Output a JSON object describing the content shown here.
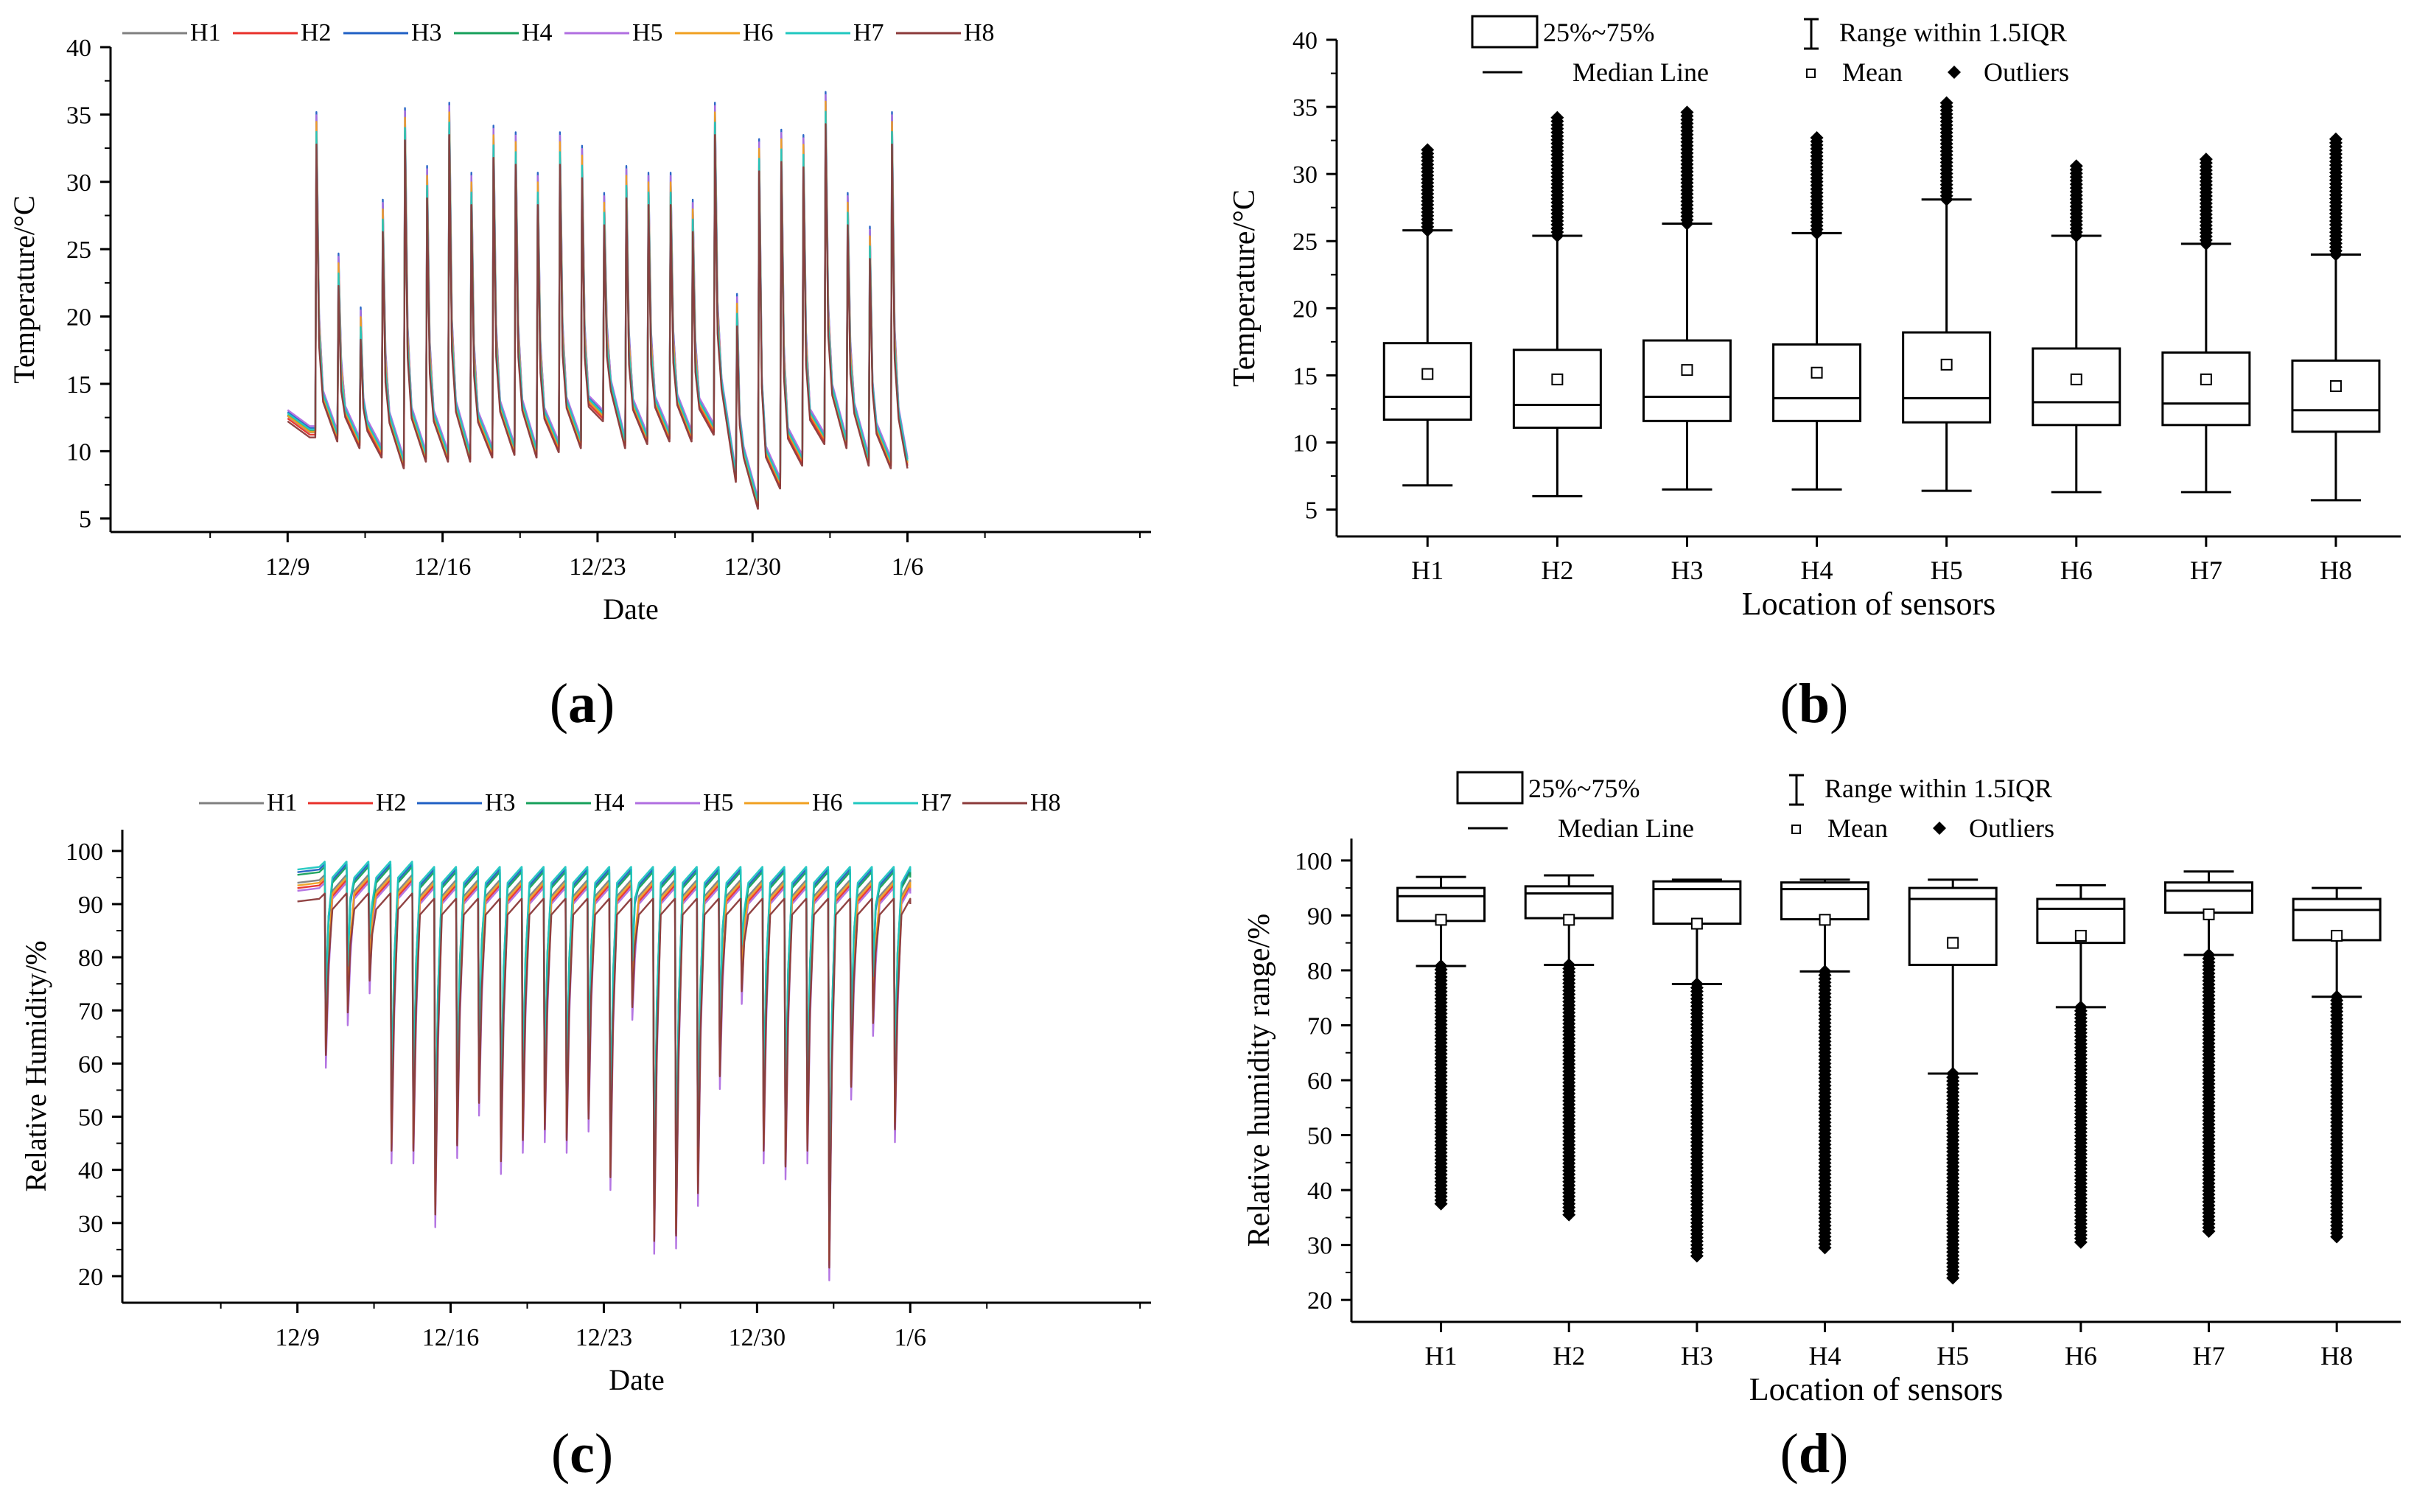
{
  "chart_data": [
    {
      "id": "a",
      "type": "line",
      "panel_label": "a",
      "xlabel": "Date",
      "ylabel": "Temperature/°C",
      "ylim": [
        4,
        40
      ],
      "xlim": [
        -8,
        39
      ],
      "yticks": [
        5,
        10,
        15,
        20,
        25,
        30,
        35,
        40
      ],
      "xtick_positions": [
        0,
        7,
        14,
        21,
        28
      ],
      "xtick_labels": [
        "12/9",
        "12/16",
        "12/23",
        "12/30",
        "1/6"
      ],
      "legend_position": "top",
      "series": [
        {
          "name": "H1",
          "color": "#7f7f7f",
          "offset": 0.3
        },
        {
          "name": "H2",
          "color": "#e8302a",
          "offset": -0.2
        },
        {
          "name": "H3",
          "color": "#1f5fc4",
          "offset": 1.2
        },
        {
          "name": "H4",
          "color": "#16a05a",
          "offset": 0.6
        },
        {
          "name": "H5",
          "color": "#b06ee0",
          "offset": 1.6
        },
        {
          "name": "H6",
          "color": "#f0a020",
          "offset": 0.4
        },
        {
          "name": "H7",
          "color": "#1fc7c0",
          "offset": 0.9
        },
        {
          "name": "H8",
          "color": "#8b3a3a",
          "offset": -0.8
        }
      ],
      "daily_peaks": [
        {
          "day": 1.3,
          "peak": 33.5,
          "min": 10.5
        },
        {
          "day": 2.3,
          "peak": 23.0,
          "min": 11.0
        },
        {
          "day": 3.3,
          "peak": 19.0,
          "min": 10.5
        },
        {
          "day": 4.3,
          "peak": 27.0,
          "min": 9.8
        },
        {
          "day": 5.3,
          "peak": 33.8,
          "min": 9.0
        },
        {
          "day": 6.3,
          "peak": 29.5,
          "min": 9.5
        },
        {
          "day": 7.3,
          "peak": 34.2,
          "min": 9.5
        },
        {
          "day": 8.3,
          "peak": 29.0,
          "min": 9.5
        },
        {
          "day": 9.3,
          "peak": 32.5,
          "min": 9.8
        },
        {
          "day": 10.3,
          "peak": 32.0,
          "min": 10.0
        },
        {
          "day": 11.3,
          "peak": 29.0,
          "min": 9.8
        },
        {
          "day": 12.3,
          "peak": 32.0,
          "min": 10.2
        },
        {
          "day": 13.3,
          "peak": 31.0,
          "min": 10.5
        },
        {
          "day": 14.3,
          "peak": 27.5,
          "min": 12.5
        },
        {
          "day": 15.3,
          "peak": 29.5,
          "min": 10.5
        },
        {
          "day": 16.3,
          "peak": 29.0,
          "min": 10.8
        },
        {
          "day": 17.3,
          "peak": 29.0,
          "min": 11.0
        },
        {
          "day": 18.3,
          "peak": 27.0,
          "min": 11.0
        },
        {
          "day": 19.3,
          "peak": 34.2,
          "min": 11.5
        },
        {
          "day": 20.3,
          "peak": 20.0,
          "min": 8.0
        },
        {
          "day": 21.3,
          "peak": 31.5,
          "min": 6.0
        },
        {
          "day": 22.3,
          "peak": 32.2,
          "min": 7.5
        },
        {
          "day": 23.3,
          "peak": 31.8,
          "min": 9.2
        },
        {
          "day": 24.3,
          "peak": 35.0,
          "min": 10.8
        },
        {
          "day": 25.3,
          "peak": 27.5,
          "min": 10.5
        },
        {
          "day": 26.3,
          "peak": 25.0,
          "min": 9.2
        },
        {
          "day": 27.3,
          "peak": 33.5,
          "min": 9.0
        }
      ],
      "x_start": 0.0,
      "x_end": 28.0,
      "start_value": 12.5,
      "end_value": 9.0
    },
    {
      "id": "b",
      "type": "box",
      "panel_label": "b",
      "xlabel": "Location of sensors",
      "ylabel": "Temperature/°C",
      "ylim": [
        3,
        40
      ],
      "yticks": [
        5,
        10,
        15,
        20,
        25,
        30,
        35,
        40
      ],
      "categories": [
        "H1",
        "H2",
        "H3",
        "H4",
        "H5",
        "H6",
        "H7",
        "H8"
      ],
      "legend": {
        "box": "25%~75%",
        "whisker": "Range within 1.5IQR",
        "median": "Median Line",
        "mean": "Mean",
        "outliers": "Outliers"
      },
      "boxes": [
        {
          "name": "H1",
          "whisker_low": 6.8,
          "q1": 11.7,
          "median": 13.4,
          "q3": 17.4,
          "whisker_high": 25.8,
          "mean": 15.1,
          "outlier_min": 25.8,
          "outlier_max": 31.8
        },
        {
          "name": "H2",
          "whisker_low": 6.0,
          "q1": 11.1,
          "median": 12.8,
          "q3": 16.9,
          "whisker_high": 25.4,
          "mean": 14.7,
          "outlier_min": 25.4,
          "outlier_max": 34.2
        },
        {
          "name": "H3",
          "whisker_low": 6.5,
          "q1": 11.6,
          "median": 13.4,
          "q3": 17.6,
          "whisker_high": 26.3,
          "mean": 15.4,
          "outlier_min": 26.3,
          "outlier_max": 34.6
        },
        {
          "name": "H4",
          "whisker_low": 6.5,
          "q1": 11.6,
          "median": 13.3,
          "q3": 17.3,
          "whisker_high": 25.6,
          "mean": 15.2,
          "outlier_min": 25.6,
          "outlier_max": 32.7
        },
        {
          "name": "H5",
          "whisker_low": 6.4,
          "q1": 11.5,
          "median": 13.3,
          "q3": 18.2,
          "whisker_high": 28.1,
          "mean": 15.8,
          "outlier_min": 28.1,
          "outlier_max": 35.3
        },
        {
          "name": "H6",
          "whisker_low": 6.3,
          "q1": 11.3,
          "median": 13.0,
          "q3": 17.0,
          "whisker_high": 25.4,
          "mean": 14.7,
          "outlier_min": 25.4,
          "outlier_max": 30.6
        },
        {
          "name": "H7",
          "whisker_low": 6.3,
          "q1": 11.3,
          "median": 12.9,
          "q3": 16.7,
          "whisker_high": 24.8,
          "mean": 14.7,
          "outlier_min": 24.8,
          "outlier_max": 31.1
        },
        {
          "name": "H8",
          "whisker_low": 5.7,
          "q1": 10.8,
          "median": 12.4,
          "q3": 16.1,
          "whisker_high": 24.0,
          "mean": 14.2,
          "outlier_min": 24.0,
          "outlier_max": 32.6
        }
      ],
      "outlier_side": "high"
    },
    {
      "id": "c",
      "type": "line",
      "panel_label": "c",
      "xlabel": "Date",
      "ylabel": "Relative Humidity/%",
      "ylim": [
        15,
        104
      ],
      "xlim": [
        -8,
        39
      ],
      "yticks": [
        20,
        30,
        40,
        50,
        60,
        70,
        80,
        90,
        100
      ],
      "xtick_positions": [
        0,
        7,
        14,
        21,
        28
      ],
      "xtick_labels": [
        "12/9",
        "12/16",
        "12/23",
        "12/30",
        "1/6"
      ],
      "legend_position": "top",
      "series": [
        {
          "name": "H1",
          "color": "#7f7f7f",
          "offset": 0.5
        },
        {
          "name": "H2",
          "color": "#e8302a",
          "offset": -0.5
        },
        {
          "name": "H3",
          "color": "#1f5fc4",
          "offset": 2.5
        },
        {
          "name": "H4",
          "color": "#16a05a",
          "offset": 2.0
        },
        {
          "name": "H5",
          "color": "#b06ee0",
          "offset": -1.0
        },
        {
          "name": "H6",
          "color": "#f0a020",
          "offset": 0.0
        },
        {
          "name": "H7",
          "color": "#1fc7c0",
          "offset": 3.0
        },
        {
          "name": "H8",
          "color": "#8b3a3a",
          "offset": -3.0
        }
      ],
      "daily_dips": [
        {
          "day": 1.3,
          "min": 64,
          "max": 95
        },
        {
          "day": 2.3,
          "min": 72,
          "max": 95
        },
        {
          "day": 3.3,
          "min": 78,
          "max": 95
        },
        {
          "day": 4.3,
          "min": 46,
          "max": 95
        },
        {
          "day": 5.3,
          "min": 46,
          "max": 94
        },
        {
          "day": 6.3,
          "min": 34,
          "max": 94
        },
        {
          "day": 7.3,
          "min": 47,
          "max": 94
        },
        {
          "day": 8.3,
          "min": 55,
          "max": 94
        },
        {
          "day": 9.3,
          "min": 44,
          "max": 94
        },
        {
          "day": 10.3,
          "min": 48,
          "max": 94
        },
        {
          "day": 11.3,
          "min": 50,
          "max": 94
        },
        {
          "day": 12.3,
          "min": 48,
          "max": 94
        },
        {
          "day": 13.3,
          "min": 52,
          "max": 94
        },
        {
          "day": 14.3,
          "min": 41,
          "max": 94
        },
        {
          "day": 15.3,
          "min": 73,
          "max": 94
        },
        {
          "day": 16.3,
          "min": 29,
          "max": 94
        },
        {
          "day": 17.3,
          "min": 30,
          "max": 94
        },
        {
          "day": 18.3,
          "min": 38,
          "max": 94
        },
        {
          "day": 19.3,
          "min": 60,
          "max": 94
        },
        {
          "day": 20.3,
          "min": 76,
          "max": 94
        },
        {
          "day": 21.3,
          "min": 46,
          "max": 94
        },
        {
          "day": 22.3,
          "min": 43,
          "max": 94
        },
        {
          "day": 23.3,
          "min": 46,
          "max": 94
        },
        {
          "day": 24.3,
          "min": 24,
          "max": 94
        },
        {
          "day": 25.3,
          "min": 58,
          "max": 94
        },
        {
          "day": 26.3,
          "min": 70,
          "max": 94
        },
        {
          "day": 27.3,
          "min": 50,
          "max": 94
        }
      ],
      "x_start": 0.0,
      "x_end": 28.0,
      "start_value": 93.5,
      "end_value": 93.0
    },
    {
      "id": "d",
      "type": "box",
      "panel_label": "d",
      "xlabel": "Location of sensors",
      "ylabel": "Relative humidity range/%",
      "ylim": [
        16,
        104
      ],
      "yticks": [
        20,
        30,
        40,
        50,
        60,
        70,
        80,
        90,
        100
      ],
      "categories": [
        "H1",
        "H2",
        "H3",
        "H4",
        "H5",
        "H6",
        "H7",
        "H8"
      ],
      "legend": {
        "box": "25%~75%",
        "whisker": "Range within 1.5IQR",
        "median": "Median Line",
        "mean": "Mean",
        "outliers": "Outliers"
      },
      "boxes": [
        {
          "name": "H1",
          "whisker_low": 80.8,
          "q1": 89.0,
          "median": 93.5,
          "q3": 95.0,
          "whisker_high": 97.0,
          "mean": 89.2,
          "outlier_min": 37.5,
          "outlier_max": 80.8
        },
        {
          "name": "H2",
          "whisker_low": 81.0,
          "q1": 89.5,
          "median": 94.0,
          "q3": 95.3,
          "whisker_high": 97.3,
          "mean": 89.2,
          "outlier_min": 35.5,
          "outlier_max": 81.0
        },
        {
          "name": "H3",
          "whisker_low": 77.5,
          "q1": 88.5,
          "median": 94.8,
          "q3": 96.2,
          "whisker_high": 96.5,
          "mean": 88.5,
          "outlier_min": 28.0,
          "outlier_max": 77.5
        },
        {
          "name": "H4",
          "whisker_low": 79.8,
          "q1": 89.3,
          "median": 94.8,
          "q3": 96.0,
          "whisker_high": 96.5,
          "mean": 89.2,
          "outlier_min": 29.5,
          "outlier_max": 79.8
        },
        {
          "name": "H5",
          "whisker_low": 61.2,
          "q1": 81.0,
          "median": 93.0,
          "q3": 95.0,
          "whisker_high": 96.5,
          "mean": 85.0,
          "outlier_min": 24.0,
          "outlier_max": 61.2
        },
        {
          "name": "H6",
          "whisker_low": 73.3,
          "q1": 85.0,
          "median": 91.2,
          "q3": 93.0,
          "whisker_high": 95.5,
          "mean": 86.3,
          "outlier_min": 30.5,
          "outlier_max": 73.3
        },
        {
          "name": "H7",
          "whisker_low": 82.8,
          "q1": 90.5,
          "median": 94.5,
          "q3": 96.0,
          "whisker_high": 98.0,
          "mean": 90.2,
          "outlier_min": 32.5,
          "outlier_max": 82.8
        },
        {
          "name": "H8",
          "whisker_low": 75.2,
          "q1": 85.5,
          "median": 91.0,
          "q3": 93.0,
          "whisker_high": 95.0,
          "mean": 86.3,
          "outlier_min": 31.5,
          "outlier_max": 75.2
        }
      ],
      "outlier_side": "low"
    }
  ]
}
